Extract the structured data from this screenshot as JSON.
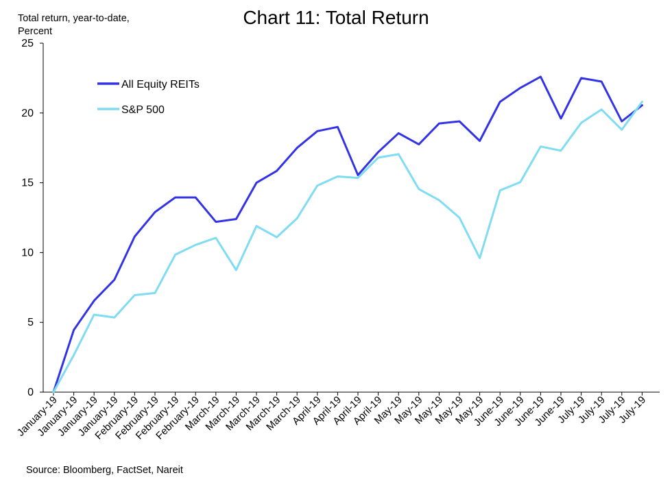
{
  "chart_data": {
    "type": "line",
    "title": "Chart 11: Total Return",
    "ylabel_line1": "Total return, year-to-date,",
    "ylabel_line2": "Percent",
    "xlabel": "",
    "source": "Source: Bloomberg, FactSet, Nareit",
    "ylim": [
      0,
      25
    ],
    "yticks": [
      0,
      5,
      10,
      15,
      20,
      25
    ],
    "grid": false,
    "legend_position": "top-left",
    "categories": [
      "January-19",
      "January-19",
      "January-19",
      "January-19",
      "February-19",
      "February-19",
      "February-19",
      "February-19",
      "March-19",
      "March-19",
      "March-19",
      "March-19",
      "March-19",
      "April-19",
      "April-19",
      "April-19",
      "April-19",
      "May-19",
      "May-19",
      "May-19",
      "May-19",
      "May-19",
      "June-19",
      "June-19",
      "June-19",
      "June-19",
      "July-19",
      "July-19",
      "July-19",
      "July-19"
    ],
    "series": [
      {
        "name": "All Equity REITs",
        "color": "#3333e6",
        "values": [
          0.0,
          4.45,
          6.55,
          8.05,
          11.15,
          12.9,
          13.95,
          13.95,
          12.2,
          12.4,
          15.0,
          15.85,
          17.5,
          18.7,
          19.0,
          15.55,
          17.2,
          18.55,
          17.75,
          19.25,
          19.4,
          18.0,
          20.8,
          21.8,
          22.6,
          19.6,
          22.5,
          22.25,
          19.4,
          20.55
        ]
      },
      {
        "name": "S&P 500",
        "color": "#7fdcf2",
        "values": [
          0.0,
          2.65,
          5.55,
          5.35,
          6.95,
          7.1,
          9.85,
          10.55,
          11.05,
          8.75,
          11.9,
          11.1,
          12.45,
          14.8,
          15.45,
          15.35,
          16.8,
          17.05,
          14.55,
          13.75,
          12.5,
          9.6,
          14.45,
          15.05,
          17.6,
          17.3,
          19.3,
          20.25,
          18.8,
          20.8
        ]
      }
    ]
  }
}
